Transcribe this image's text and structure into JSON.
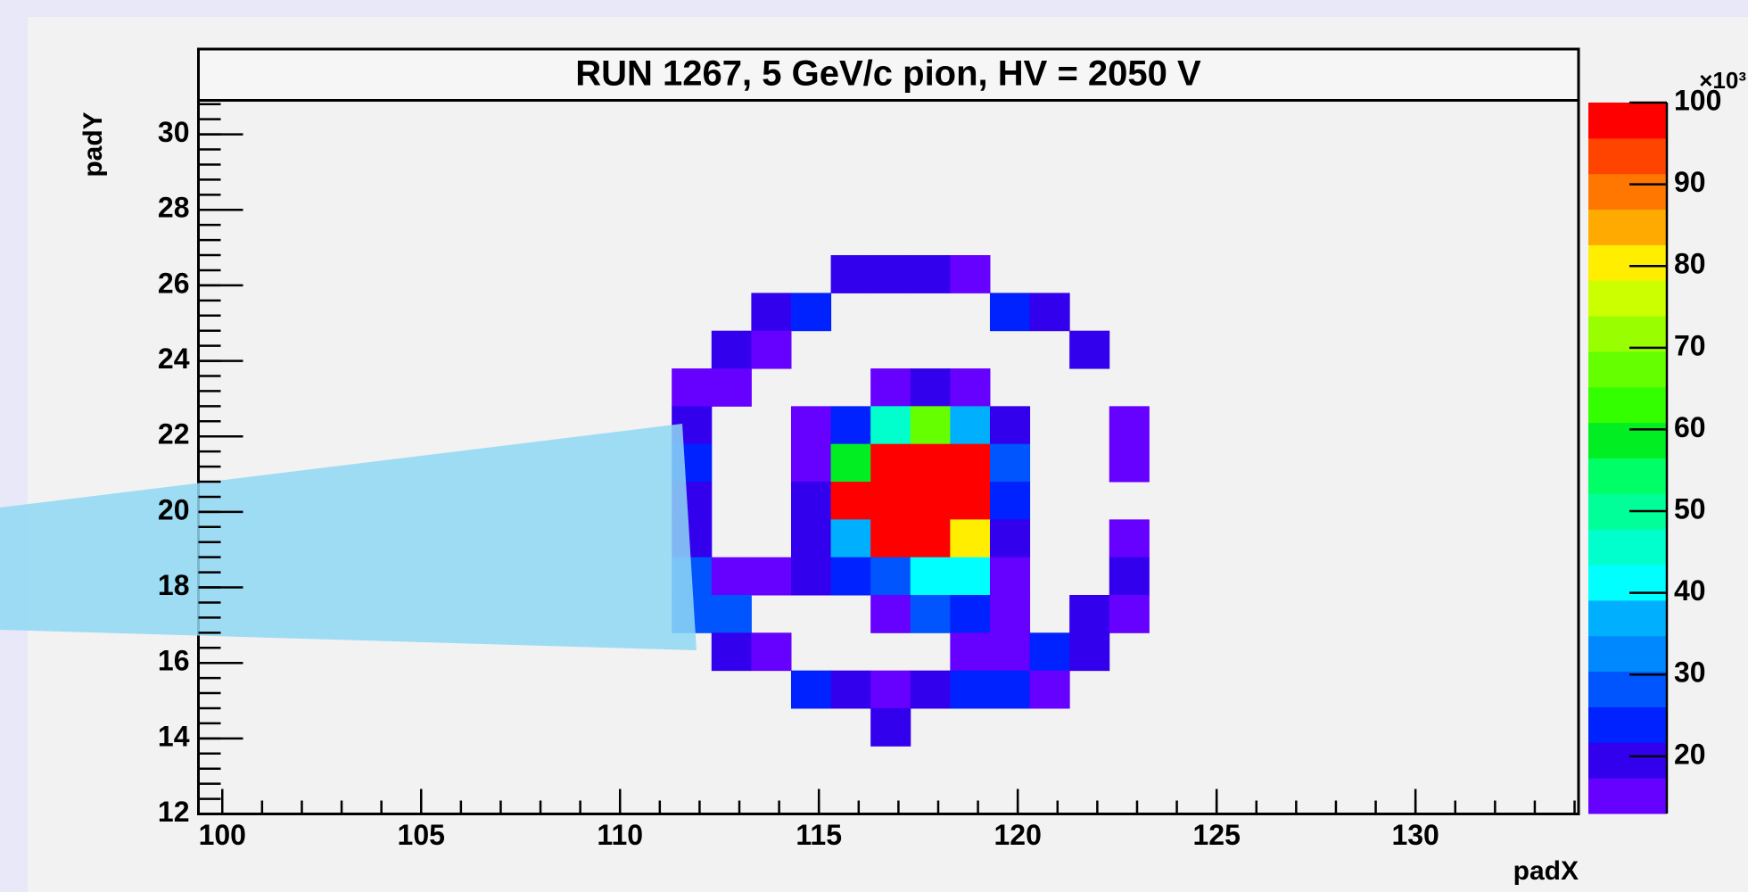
{
  "chart_data": {
    "type": "heatmap",
    "title": "RUN 1267, 5 GeV/c pion, HV = 2050 V",
    "x_label": "padX",
    "y_label": "padY",
    "xlim": [
      99.4,
      134.1
    ],
    "ylim": [
      12,
      30.9
    ],
    "xticks": [
      100,
      105,
      110,
      115,
      120,
      125,
      130
    ],
    "yticks": [
      12,
      14,
      16,
      18,
      20,
      22,
      24,
      26,
      28,
      30
    ],
    "x": [
      115.3,
      116.3,
      117.3,
      118.3,
      113.3,
      114.3,
      119.3,
      120.3,
      112.3,
      113.3,
      121.3,
      111.3,
      112.3,
      116.3,
      117.3,
      118.3,
      111.3,
      114.3,
      115.3,
      116.3,
      117.3,
      118.3,
      119.3,
      122.3,
      111.3,
      114.3,
      115.3,
      116.3,
      117.3,
      118.3,
      119.3,
      122.3,
      111.3,
      114.3,
      115.3,
      116.3,
      117.3,
      118.3,
      119.3,
      111.3,
      114.3,
      115.3,
      116.3,
      117.3,
      118.3,
      119.3,
      122.3,
      111.3,
      112.3,
      113.3,
      114.3,
      115.3,
      116.3,
      117.3,
      118.3,
      119.3,
      122.3,
      111.3,
      112.3,
      116.3,
      117.3,
      118.3,
      119.3,
      121.3,
      122.3,
      112.3,
      113.3,
      118.3,
      119.3,
      120.3,
      121.3,
      114.3,
      115.3,
      116.3,
      117.3,
      118.3,
      119.3,
      120.3,
      116.3
    ],
    "y": [
      25.8,
      25.8,
      25.8,
      25.8,
      24.8,
      24.8,
      24.8,
      24.8,
      23.8,
      23.8,
      23.8,
      22.8,
      22.8,
      22.8,
      22.8,
      22.8,
      21.8,
      21.8,
      21.8,
      21.8,
      21.8,
      21.8,
      21.8,
      21.8,
      20.8,
      20.8,
      20.8,
      20.8,
      20.8,
      20.8,
      20.8,
      20.8,
      19.8,
      19.8,
      19.8,
      19.8,
      19.8,
      19.8,
      19.8,
      18.8,
      18.8,
      18.8,
      18.8,
      18.8,
      18.8,
      18.8,
      18.8,
      17.8,
      17.8,
      17.8,
      17.8,
      17.8,
      17.8,
      17.8,
      17.8,
      17.8,
      17.8,
      16.8,
      16.8,
      16.8,
      16.8,
      16.8,
      16.8,
      16.8,
      16.8,
      15.8,
      15.8,
      15.8,
      15.8,
      15.8,
      15.8,
      14.8,
      14.8,
      14.8,
      14.8,
      14.8,
      14.8,
      14.8,
      13.8
    ],
    "values": [
      19,
      19,
      19,
      15,
      19,
      23,
      23,
      19,
      19,
      15,
      19,
      15,
      15,
      15,
      19,
      15,
      19,
      15,
      23,
      45,
      68,
      36,
      19,
      15,
      23,
      15,
      60,
      99,
      99,
      99,
      27,
      15,
      19,
      19,
      99,
      99,
      99,
      99,
      23,
      19,
      19,
      36,
      99,
      99,
      80,
      19,
      15,
      27,
      15,
      15,
      19,
      23,
      27,
      41,
      41,
      15,
      19,
      27,
      27,
      15,
      27,
      23,
      15,
      19,
      15,
      19,
      15,
      15,
      15,
      23,
      19,
      23,
      19,
      15,
      19,
      23,
      23,
      15,
      19
    ],
    "zlim": [
      13,
      100
    ],
    "zticks": [
      20,
      30,
      40,
      50,
      60,
      70,
      80,
      90,
      100
    ],
    "z_scale_label": "×10³",
    "palette": [
      "#6600ff",
      "#3300ee",
      "#0022ff",
      "#0055ff",
      "#0088ff",
      "#00b0ff",
      "#00ffff",
      "#00ffcc",
      "#00ff99",
      "#00ff66",
      "#00ee22",
      "#33ff00",
      "#66ff00",
      "#99ff00",
      "#ccff00",
      "#ffee00",
      "#ffaa00",
      "#ff7700",
      "#ff4400",
      "#ff0000"
    ]
  }
}
